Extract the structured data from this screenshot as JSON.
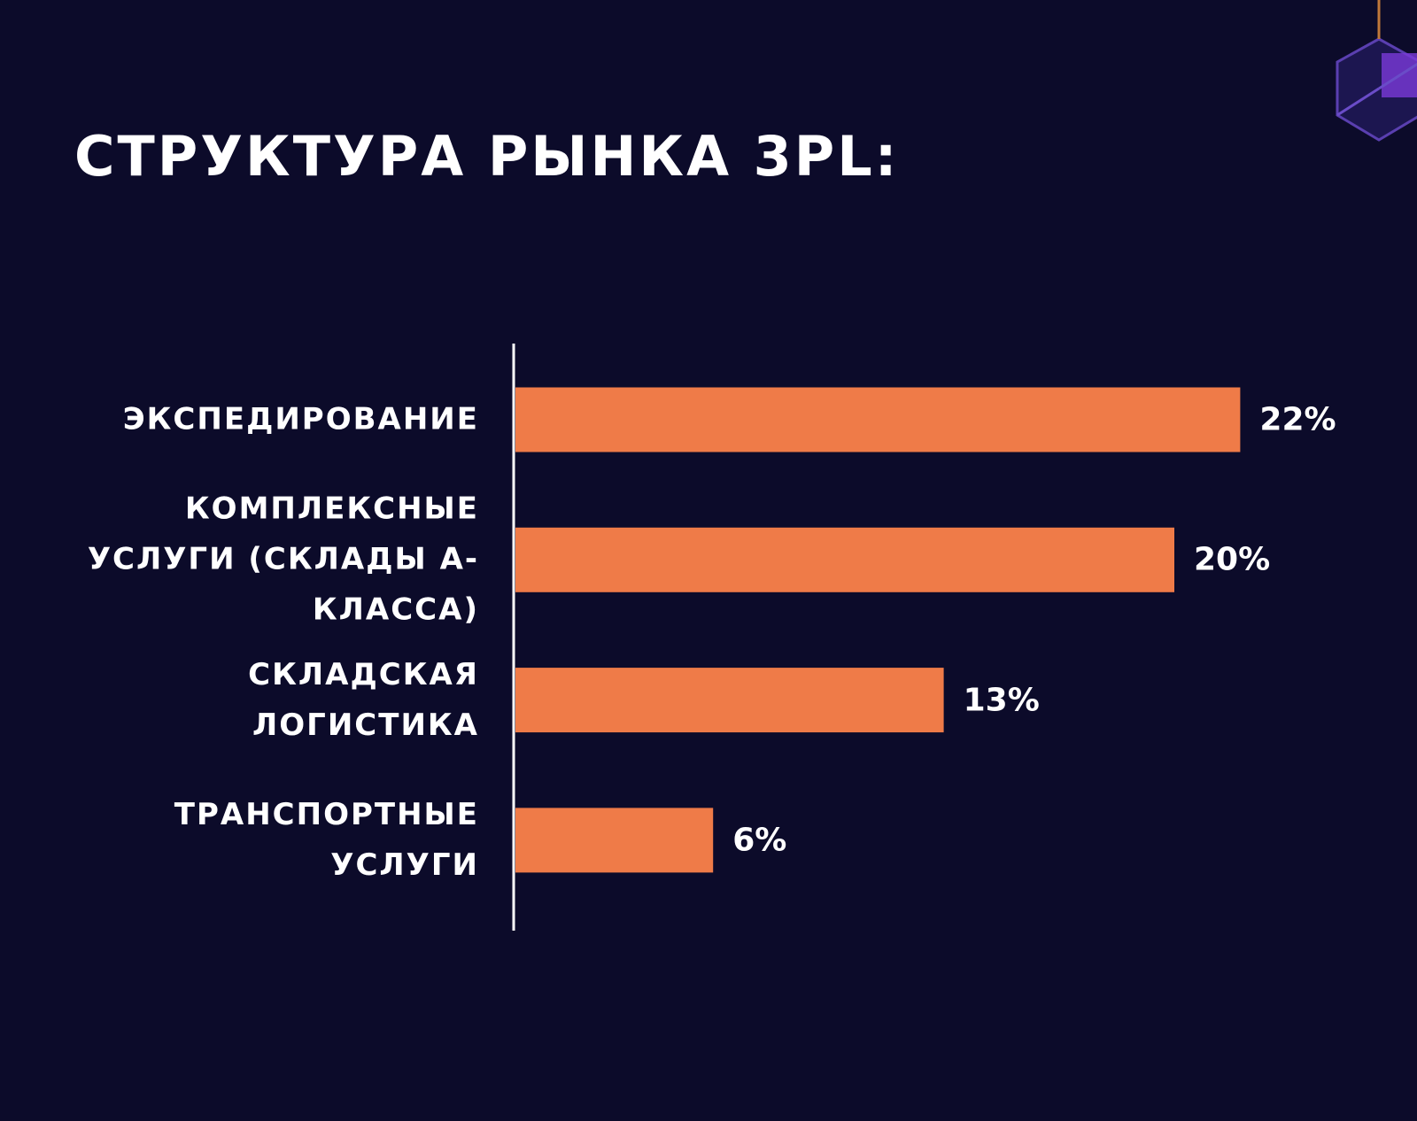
{
  "chart_data": {
    "type": "bar",
    "orientation": "horizontal",
    "title": "СТРУКТУРА РЫНКА 3PL:",
    "categories": [
      "ЭКСПЕДИРОВАНИЕ",
      "КОМПЛЕКСНЫЕ УСЛУГИ (СКЛАДЫ А-КЛАССА)",
      "СКЛАДСКАЯ ЛОГИСТИКА",
      "ТРАНСПОРТНЫЕ УСЛУГИ"
    ],
    "values": [
      22,
      20,
      13,
      6
    ],
    "value_labels": [
      "22%",
      "20%",
      "13%",
      "6%"
    ],
    "color": "#ef7b48"
  }
}
